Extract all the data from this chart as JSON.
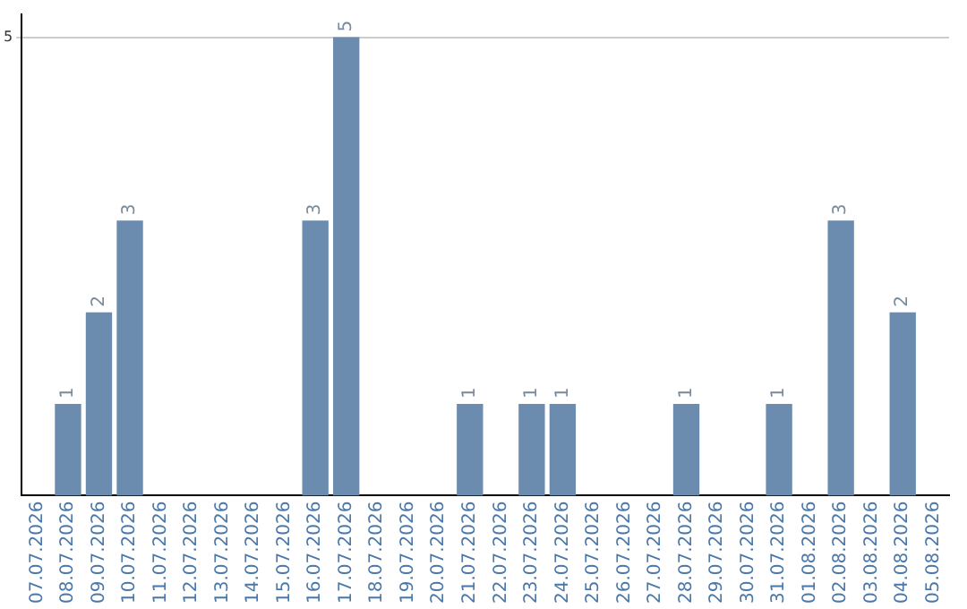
{
  "chart_data": {
    "type": "bar",
    "categories": [
      "07.07.2026",
      "08.07.2026",
      "09.07.2026",
      "10.07.2026",
      "11.07.2026",
      "12.07.2026",
      "13.07.2026",
      "14.07.2026",
      "15.07.2026",
      "16.07.2026",
      "17.07.2026",
      "18.07.2026",
      "19.07.2026",
      "20.07.2026",
      "21.07.2026",
      "22.07.2026",
      "23.07.2026",
      "24.07.2026",
      "25.07.2026",
      "26.07.2026",
      "27.07.2026",
      "28.07.2026",
      "29.07.2026",
      "30.07.2026",
      "31.07.2026",
      "01.08.2026",
      "02.08.2026",
      "03.08.2026",
      "04.08.2026",
      "05.08.2026"
    ],
    "values": [
      0,
      1,
      2,
      3,
      0,
      0,
      0,
      0,
      0,
      3,
      5,
      0,
      0,
      0,
      1,
      0,
      1,
      1,
      0,
      0,
      0,
      1,
      0,
      0,
      1,
      0,
      3,
      0,
      2,
      0
    ],
    "value_labels": [
      null,
      "1",
      "2",
      "3",
      null,
      null,
      null,
      null,
      null,
      "3",
      "5",
      null,
      null,
      null,
      "1",
      null,
      "1",
      "1",
      null,
      null,
      null,
      "1",
      null,
      null,
      "1",
      null,
      "3",
      null,
      "2",
      null
    ],
    "color": "#6b8cae",
    "ylim": [
      0,
      5.25
    ],
    "yticks": [
      5
    ],
    "grid": "y",
    "legend": false
  }
}
